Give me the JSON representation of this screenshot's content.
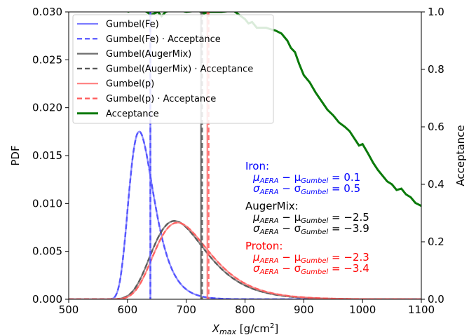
{
  "chart_data": {
    "type": "line",
    "xlabel_main": "X",
    "xlabel_sub": "max",
    "xlabel_unit": " [g/cm",
    "xlabel_sup": "2",
    "xlabel_close": "]",
    "ylabel": "PDF",
    "ylabel_right": "Acceptance",
    "xlim": [
      500,
      1100
    ],
    "ylim": [
      0,
      0.03
    ],
    "ylim_right": [
      0,
      1
    ],
    "x_ticks": [
      "500",
      "600",
      "700",
      "800",
      "900",
      "1000",
      "1100"
    ],
    "y_ticks": [
      "0.000",
      "0.005",
      "0.010",
      "0.015",
      "0.020",
      "0.025",
      "0.030"
    ],
    "y_ticks_right": [
      "0.0",
      "0.2",
      "0.4",
      "0.6",
      "0.8",
      "1.0"
    ],
    "grid": false,
    "legend_position": "top-left",
    "series": [
      {
        "name": "Gumbel(Fe)",
        "kind": "gumbel",
        "mu": 620,
        "sigma": 21,
        "color": "#7b7bff",
        "dash": false,
        "marker_x": 639
      },
      {
        "name": "Gumbel(Fe) · Acceptance",
        "kind": "gumbel",
        "mu": 620,
        "sigma": 21,
        "color": "#4b4bff",
        "dash": true,
        "marker_x": 639
      },
      {
        "name": "Gumbel(AugerMix)",
        "kind": "gumbel",
        "mu": 680,
        "sigma": 45,
        "color": "#6e6e6e",
        "dash": false,
        "marker_x": 725
      },
      {
        "name": "Gumbel(AugerMix) · Acceptance",
        "kind": "gumbel",
        "mu": 680,
        "sigma": 45,
        "color": "#555555",
        "dash": true,
        "marker_x": 727
      },
      {
        "name": "Gumbel(p)",
        "kind": "gumbel",
        "mu": 685,
        "sigma": 46,
        "color": "#ff7f7f",
        "dash": false,
        "marker_x": 736
      },
      {
        "name": "Gumbel(p) · Acceptance",
        "kind": "gumbel",
        "mu": 685,
        "sigma": 46,
        "color": "#ff5a5a",
        "dash": true,
        "marker_x": 738
      },
      {
        "name": "Acceptance",
        "kind": "acceptance",
        "color": "#0a7a0a",
        "dash": false,
        "x": [
          600,
          615,
          625,
          640,
          652,
          658,
          665,
          680,
          700,
          720,
          730,
          740,
          760,
          780,
          800,
          806,
          812,
          820,
          828,
          836,
          843,
          852,
          862,
          872,
          878,
          885,
          892,
          900,
          910,
          920,
          930,
          940,
          950,
          960,
          970,
          978,
          986,
          994,
          1000,
          1010,
          1018,
          1026,
          1034,
          1042,
          1050,
          1058,
          1066,
          1074,
          1082,
          1090,
          1100
        ],
        "y": [
          1.0,
          1.01,
          1.01,
          0.99,
          1.0,
          0.985,
          1.0,
          1.01,
          1.0,
          1.005,
          0.995,
          1.0,
          1.0,
          1.005,
          0.975,
          0.96,
          0.965,
          0.945,
          0.945,
          0.945,
          0.94,
          0.935,
          0.925,
          0.9,
          0.875,
          0.86,
          0.82,
          0.78,
          0.755,
          0.72,
          0.69,
          0.66,
          0.64,
          0.615,
          0.6,
          0.585,
          0.56,
          0.535,
          0.54,
          0.505,
          0.475,
          0.45,
          0.43,
          0.41,
          0.4,
          0.38,
          0.385,
          0.365,
          0.355,
          0.335,
          0.325
        ]
      }
    ],
    "annotations": [
      {
        "group": "Iron",
        "color": "#0000ff",
        "title": "Iron:",
        "line1": "μ",
        "line1_sub": "AERA",
        "line1_mid": " − μ",
        "line1_sub2": "Gumbel",
        "line1_val": " = 0.1",
        "line2": "σ",
        "line2_sub": "AERA",
        "line2_mid": " − σ",
        "line2_sub2": "Gumbel",
        "line2_val": " = 0.5"
      },
      {
        "group": "AugerMix",
        "color": "#000000",
        "title": "AugerMix:",
        "line1": "μ",
        "line1_sub": "AERA",
        "line1_mid": " − μ",
        "line1_sub2": "Gumbel",
        "line1_val": " = −2.5",
        "line2": "σ",
        "line2_sub": "AERA",
        "line2_mid": " − σ",
        "line2_sub2": "Gumbel",
        "line2_val": " = −3.9"
      },
      {
        "group": "Proton",
        "color": "#ff0000",
        "title": "Proton:",
        "line1": "μ",
        "line1_sub": "AERA",
        "line1_mid": " − μ",
        "line1_sub2": "Gumbel",
        "line1_val": " = −2.3",
        "line2": "σ",
        "line2_sub": "AERA",
        "line2_mid": " − σ",
        "line2_sub2": "Gumbel",
        "line2_val": " = −3.4"
      }
    ]
  }
}
